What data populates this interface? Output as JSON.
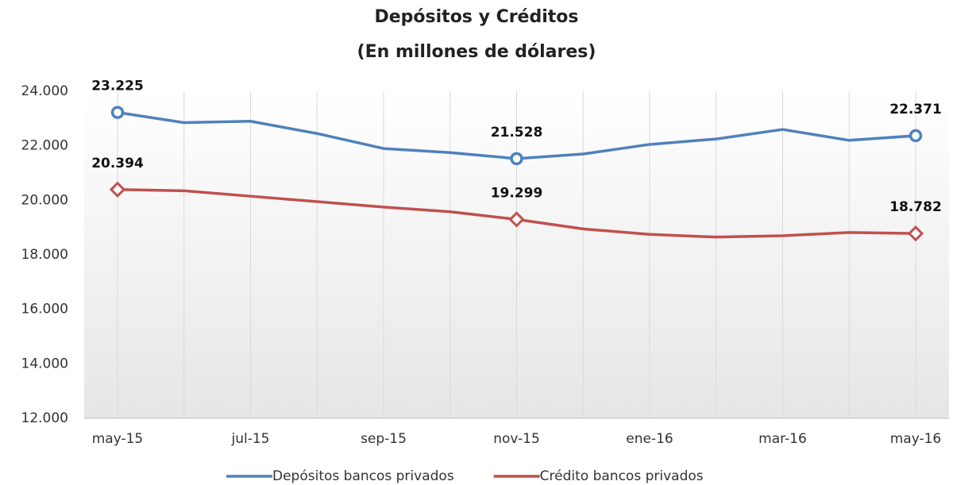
{
  "chart_data": {
    "type": "line",
    "title": "Depósitos y Créditos",
    "subtitle": "(En millones de dólares)",
    "categories": [
      "may-15",
      null,
      "jul-15",
      null,
      "sep-15",
      null,
      "nov-15",
      null,
      "ene-16",
      null,
      "mar-16",
      null,
      "may-16"
    ],
    "series": [
      {
        "name": "Depósitos bancos privados",
        "color": "#4f81bd",
        "values": [
          23225,
          22850,
          22900,
          22450,
          21900,
          21750,
          21528,
          21700,
          22050,
          22250,
          22600,
          22200,
          22371
        ],
        "value_labels": [
          "23.225",
          null,
          null,
          null,
          null,
          null,
          "21.528",
          null,
          null,
          null,
          null,
          null,
          "22.371"
        ],
        "marker": "circle"
      },
      {
        "name": "Crédito bancos privados",
        "color": "#c0504d",
        "values": [
          20394,
          20350,
          20150,
          19950,
          19750,
          19580,
          19299,
          18950,
          18750,
          18650,
          18700,
          18820,
          18782
        ],
        "value_labels": [
          "20.394",
          null,
          null,
          null,
          null,
          null,
          "19.299",
          null,
          null,
          null,
          null,
          null,
          "18.782"
        ],
        "marker": "diamond"
      }
    ],
    "ylim": [
      12000,
      24000
    ],
    "yticks": [
      {
        "value": 12000,
        "label": "12.000"
      },
      {
        "value": 14000,
        "label": "14.000"
      },
      {
        "value": 16000,
        "label": "16.000"
      },
      {
        "value": 18000,
        "label": "18.000"
      },
      {
        "value": 20000,
        "label": "20.000"
      },
      {
        "value": 22000,
        "label": "22.000"
      },
      {
        "value": 24000,
        "label": "24.000"
      }
    ],
    "legend": "bottom"
  }
}
